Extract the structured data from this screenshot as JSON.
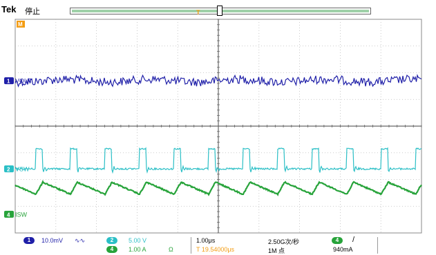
{
  "header": {
    "brand": "Tek",
    "status": "停止",
    "trigger_marker": "T",
    "record_view_fraction": [
      0.0,
      1.0
    ]
  },
  "channels": [
    {
      "id": "1",
      "label": "VOUT",
      "color": "#1f1fa8",
      "scale": "10.0mV",
      "coupling": "∿∿"
    },
    {
      "id": "2",
      "label": "VSW",
      "color": "#2bbfc6",
      "scale": "5.00 V",
      "coupling": ""
    },
    {
      "id": "4",
      "label": "ISW",
      "color": "#27a33a",
      "scale": "1.00 A",
      "coupling": "Ω"
    }
  ],
  "math_marker": "M",
  "horizontal": {
    "timebase": "1.00μs",
    "sample_rate": "2.50G次/秒",
    "record_length": "1M 点",
    "position": "T 19.54000μs"
  },
  "trigger": {
    "source": "4",
    "slope": "/",
    "level": "940mA"
  },
  "chart_data": {
    "type": "line",
    "x_divisions": 10,
    "y_divisions": 8,
    "grid": true,
    "switching_period_divisions": 0.85,
    "series": [
      {
        "name": "VOUT",
        "kind": "noise_dc",
        "level_div_from_top": 2.3,
        "ripple_div": 0.2
      },
      {
        "name": "VSW",
        "kind": "pulse",
        "high_div_from_top": 4.85,
        "low_div_from_top": 5.6,
        "pulse_width_fraction": 0.2,
        "ringing": true
      },
      {
        "name": "ISW",
        "kind": "sawtooth",
        "peak_div_from_top": 6.1,
        "trough_div_from_top": 6.55
      }
    ]
  }
}
